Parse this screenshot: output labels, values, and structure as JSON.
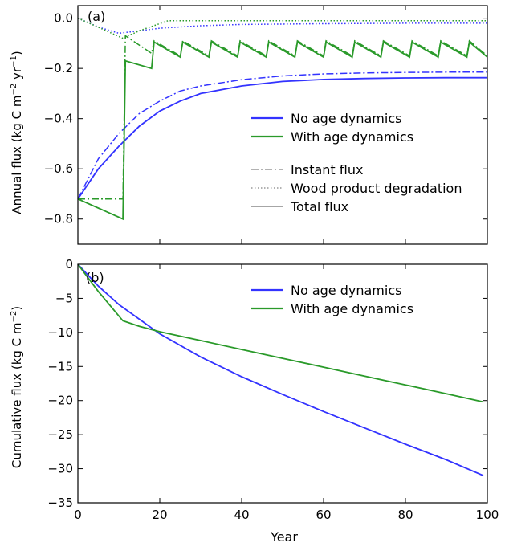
{
  "colors": {
    "no_age": "#3333ff",
    "with_age": "#2a9a2a",
    "legend_style": "#999999"
  },
  "chart_data": [
    {
      "type": "line",
      "panel_label": "(a)",
      "ylabel_parts": [
        "Annual flux (kg C m",
        "−2",
        " yr",
        "−1",
        ")"
      ],
      "xlim": [
        0,
        100
      ],
      "ylim": [
        -0.9,
        0.05
      ],
      "yticks": [
        0.0,
        -0.2,
        -0.4,
        -0.6,
        -0.8
      ],
      "ytick_labels": [
        "0.0",
        "−0.2",
        "−0.4",
        "−0.6",
        "−0.8"
      ],
      "xticks": [
        0,
        20,
        40,
        60,
        80,
        100
      ],
      "grid": false,
      "legend_location": "center-right",
      "legend_series": [
        "No age dynamics",
        "With age dynamics"
      ],
      "legend_styles": [
        "Instant flux",
        "Wood product degradation",
        "Total flux"
      ],
      "harvest_cycle": {
        "first_harvest_year": 11,
        "interval_years": 7,
        "last_year": 100
      },
      "series": [
        {
          "name": "No age dynamics",
          "component": "Total flux",
          "color": "#3333ff",
          "style": "solid",
          "x": [
            0,
            5,
            10,
            15,
            20,
            25,
            30,
            40,
            50,
            60,
            70,
            80,
            90,
            100
          ],
          "y": [
            -0.72,
            -0.6,
            -0.51,
            -0.43,
            -0.37,
            -0.33,
            -0.3,
            -0.27,
            -0.252,
            -0.244,
            -0.24,
            -0.238,
            -0.237,
            -0.237
          ]
        },
        {
          "name": "No age dynamics",
          "component": "Instant flux",
          "color": "#3333ff",
          "style": "dashdot",
          "x": [
            0,
            5,
            10,
            15,
            20,
            25,
            30,
            40,
            50,
            60,
            70,
            80,
            90,
            100
          ],
          "y": [
            -0.72,
            -0.56,
            -0.46,
            -0.38,
            -0.33,
            -0.29,
            -0.27,
            -0.245,
            -0.23,
            -0.222,
            -0.218,
            -0.216,
            -0.215,
            -0.215
          ]
        },
        {
          "name": "No age dynamics",
          "component": "Wood product degradation",
          "color": "#3333ff",
          "style": "dotted",
          "x": [
            0,
            5,
            10,
            15,
            20,
            30,
            40,
            60,
            80,
            100
          ],
          "y": [
            0.0,
            -0.035,
            -0.06,
            -0.05,
            -0.04,
            -0.03,
            -0.025,
            -0.022,
            -0.02,
            -0.02
          ]
        },
        {
          "name": "With age dynamics",
          "component": "Total flux",
          "color": "#2a9a2a",
          "style": "solid",
          "x": [
            0,
            11,
            11.6,
            18
          ],
          "y": [
            -0.72,
            -0.8,
            -0.17,
            -0.2
          ],
          "cycle": {
            "pre_harvest": -0.155,
            "post_harvest": -0.095
          }
        },
        {
          "name": "With age dynamics",
          "component": "Instant flux",
          "color": "#2a9a2a",
          "style": "dashdot",
          "x": [
            0,
            11,
            11.6,
            18
          ],
          "y": [
            -0.72,
            -0.72,
            -0.07,
            -0.14
          ],
          "cycle": {
            "pre_harvest": -0.15,
            "post_harvest": -0.09
          }
        },
        {
          "name": "With age dynamics",
          "component": "Wood product degradation",
          "color": "#2a9a2a",
          "style": "dotted",
          "x": [
            0,
            11,
            15,
            22,
            30,
            50,
            100
          ],
          "y": [
            0.0,
            -0.08,
            -0.05,
            -0.01,
            -0.01,
            -0.01,
            -0.01
          ]
        }
      ]
    },
    {
      "type": "line",
      "panel_label": "(b)",
      "ylabel_parts": [
        "Cumulative flux (kg C m",
        "−2",
        ")"
      ],
      "xlabel": "Year",
      "xlim": [
        0,
        100
      ],
      "ylim": [
        -35,
        0
      ],
      "yticks": [
        0,
        -5,
        -10,
        -15,
        -20,
        -25,
        -30,
        -35
      ],
      "ytick_labels": [
        "0",
        "−5",
        "−10",
        "−15",
        "−20",
        "−25",
        "−30",
        "−35"
      ],
      "xticks": [
        0,
        20,
        40,
        60,
        80,
        100
      ],
      "xtick_labels": [
        "0",
        "20",
        "40",
        "60",
        "80",
        "100"
      ],
      "grid": false,
      "legend_location": "top-right",
      "series": [
        {
          "name": "No age dynamics",
          "color": "#3333ff",
          "style": "solid",
          "x": [
            0,
            5,
            10,
            20,
            30,
            40,
            50,
            60,
            70,
            80,
            90,
            99
          ],
          "y": [
            0,
            -3.2,
            -5.9,
            -10.2,
            -13.6,
            -16.5,
            -19.1,
            -21.6,
            -24.0,
            -26.4,
            -28.7,
            -31.0
          ]
        },
        {
          "name": "With age dynamics",
          "color": "#2a9a2a",
          "style": "solid",
          "x": [
            0,
            5,
            11,
            15,
            20,
            30,
            40,
            50,
            60,
            70,
            80,
            90,
            99
          ],
          "y": [
            0,
            -4.0,
            -8.3,
            -9.1,
            -9.9,
            -11.2,
            -12.5,
            -13.8,
            -15.1,
            -16.4,
            -17.7,
            -19.0,
            -20.2
          ]
        }
      ]
    }
  ]
}
